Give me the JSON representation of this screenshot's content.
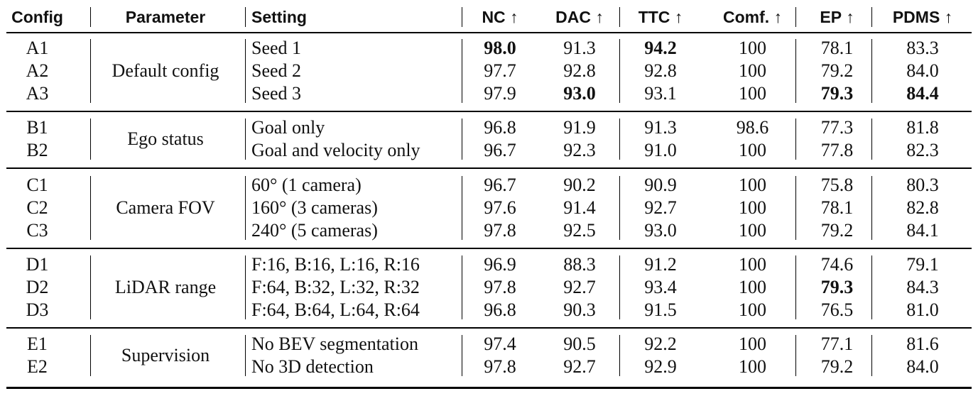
{
  "headers": [
    "Config",
    "Parameter",
    "Setting",
    "NC ↑",
    "DAC ↑",
    "TTC ↑",
    "Comf. ↑",
    "EP ↑",
    "PDMS ↑"
  ],
  "groups": [
    {
      "parameter": "Default config",
      "rows": [
        {
          "config": "A1",
          "setting": "Seed 1",
          "values": [
            "98.0",
            "91.3",
            "94.2",
            "100",
            "78.1",
            "83.3"
          ],
          "bold": [
            0,
            2
          ]
        },
        {
          "config": "A2",
          "setting": "Seed 2",
          "values": [
            "97.7",
            "92.8",
            "92.8",
            "100",
            "79.2",
            "84.0"
          ],
          "bold": []
        },
        {
          "config": "A3",
          "setting": "Seed 3",
          "values": [
            "97.9",
            "93.0",
            "93.1",
            "100",
            "79.3",
            "84.4"
          ],
          "bold": [
            1,
            4,
            5
          ]
        }
      ]
    },
    {
      "parameter": "Ego status",
      "rows": [
        {
          "config": "B1",
          "setting": "Goal only",
          "values": [
            "96.8",
            "91.9",
            "91.3",
            "98.6",
            "77.3",
            "81.8"
          ],
          "bold": []
        },
        {
          "config": "B2",
          "setting": "Goal and velocity only",
          "values": [
            "96.7",
            "92.3",
            "91.0",
            "100",
            "77.8",
            "82.3"
          ],
          "bold": []
        }
      ]
    },
    {
      "parameter": "Camera FOV",
      "rows": [
        {
          "config": "C1",
          "setting": "60° (1 camera)",
          "values": [
            "96.7",
            "90.2",
            "90.9",
            "100",
            "75.8",
            "80.3"
          ],
          "bold": []
        },
        {
          "config": "C2",
          "setting": "160° (3 cameras)",
          "values": [
            "97.6",
            "91.4",
            "92.7",
            "100",
            "78.1",
            "82.8"
          ],
          "bold": []
        },
        {
          "config": "C3",
          "setting": "240° (5 cameras)",
          "values": [
            "97.8",
            "92.5",
            "93.0",
            "100",
            "79.2",
            "84.1"
          ],
          "bold": []
        }
      ]
    },
    {
      "parameter": "LiDAR range",
      "rows": [
        {
          "config": "D1",
          "setting": "F:16, B:16, L:16, R:16",
          "values": [
            "96.9",
            "88.3",
            "91.2",
            "100",
            "74.6",
            "79.1"
          ],
          "bold": []
        },
        {
          "config": "D2",
          "setting": "F:64, B:32, L:32, R:32",
          "values": [
            "97.8",
            "92.7",
            "93.4",
            "100",
            "79.3",
            "84.3"
          ],
          "bold": [
            4
          ]
        },
        {
          "config": "D3",
          "setting": "F:64, B:64, L:64, R:64",
          "values": [
            "96.8",
            "90.3",
            "91.5",
            "100",
            "76.5",
            "81.0"
          ],
          "bold": []
        }
      ]
    },
    {
      "parameter": "Supervision",
      "rows": [
        {
          "config": "E1",
          "setting": "No BEV segmentation",
          "values": [
            "97.4",
            "90.5",
            "92.2",
            "100",
            "77.1",
            "81.6"
          ],
          "bold": []
        },
        {
          "config": "E2",
          "setting": "No 3D detection",
          "values": [
            "97.8",
            "92.7",
            "92.9",
            "100",
            "79.2",
            "84.0"
          ],
          "bold": []
        }
      ]
    }
  ]
}
